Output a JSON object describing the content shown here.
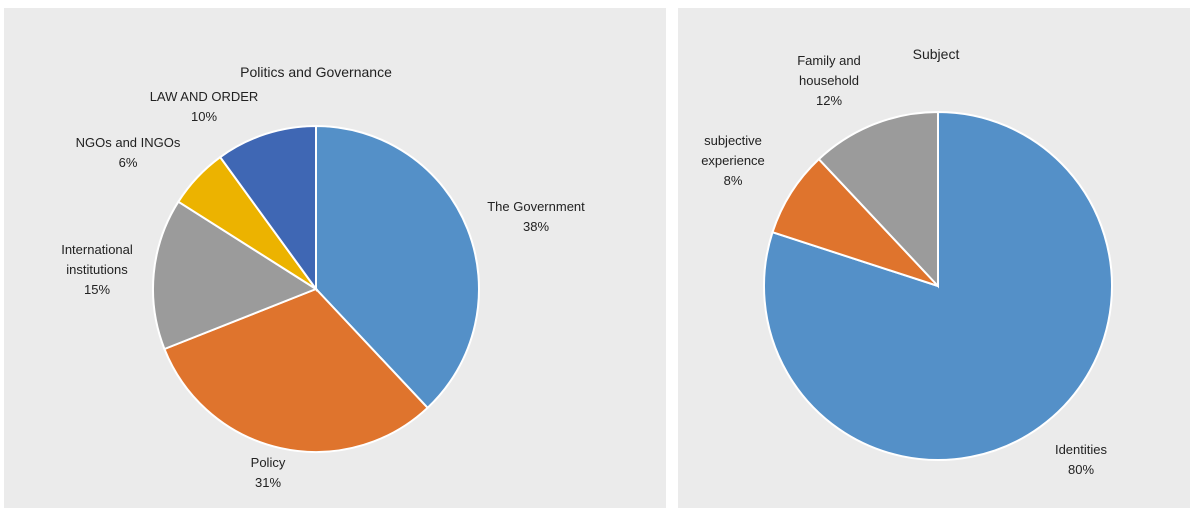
{
  "chart_data": [
    {
      "type": "pie",
      "title": "Politics and Governance",
      "slices": [
        {
          "label": "The Government",
          "value": 38,
          "value_label": "38%",
          "color": "#5490c8"
        },
        {
          "label": "Policy",
          "value": 31,
          "value_label": "31%",
          "color": "#df742d"
        },
        {
          "label": "International institutions",
          "value": 15,
          "value_label": "15%",
          "color": "#9b9b9b"
        },
        {
          "label": "NGOs and INGOs",
          "value": 6,
          "value_label": "6%",
          "color": "#ecb300"
        },
        {
          "label": "LAW AND ORDER",
          "value": 10,
          "value_label": "10%",
          "color": "#3f67b4"
        }
      ]
    },
    {
      "type": "pie",
      "title": "Subject",
      "slices": [
        {
          "label": "Identities",
          "value": 80,
          "value_label": "80%",
          "color": "#5490c8"
        },
        {
          "label": "subjective experience",
          "value": 8,
          "value_label": "8%",
          "color": "#df742d"
        },
        {
          "label": "Family and household",
          "value": 12,
          "value_label": "12%",
          "color": "#9b9b9b"
        }
      ]
    }
  ]
}
